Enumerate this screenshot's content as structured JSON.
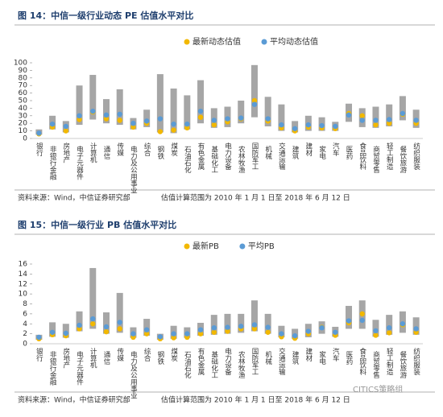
{
  "chart_data": [
    {
      "type": "range",
      "title": "图 14：中信一级行业动态 PE 估值水平对比",
      "source": "资料来源：Wind，中信证券研究部",
      "note": "估值计算范围为 2010 年 1 月 1 日至 2018 年 6 月 12 日",
      "categories": [
        "银行",
        "非银行金融",
        "房地产",
        "电子元器件",
        "计算机",
        "通信",
        "传媒",
        "电力及公用事业",
        "综合",
        "钢铁",
        "煤炭",
        "石油石化",
        "有色金属",
        "基础化工",
        "电力设备",
        "农林牧渔",
        "国防军工",
        "机械",
        "交通运输",
        "建筑",
        "建材",
        "家电",
        "汽车",
        "医药",
        "食品饮料",
        "商贸零售",
        "轻工制造",
        "餐饮旅游",
        "纺织服装"
      ],
      "range_color": "#a6a6a6",
      "range_low": [
        5,
        12,
        8,
        18,
        25,
        20,
        18,
        12,
        15,
        8,
        7,
        12,
        20,
        14,
        15,
        20,
        28,
        16,
        10,
        8,
        10,
        10,
        10,
        22,
        15,
        14,
        16,
        24,
        14
      ],
      "range_high": [
        12,
        30,
        23,
        70,
        84,
        52,
        65,
        27,
        38,
        85,
        66,
        57,
        77,
        40,
        42,
        50,
        97,
        55,
        45,
        23,
        30,
        28,
        22,
        46,
        40,
        42,
        45,
        56,
        38
      ],
      "series": [
        {
          "name": "最新动态估值",
          "color": "#f2b800",
          "values": [
            6,
            15,
            10,
            25,
            35,
            26,
            24,
            15,
            20,
            9,
            11,
            14,
            28,
            18,
            22,
            26,
            50,
            23,
            14,
            10,
            15,
            14,
            13,
            33,
            30,
            18,
            20,
            32,
            20
          ]
        },
        {
          "name": "平均动态估值",
          "color": "#5b9bd5",
          "values": [
            7,
            19,
            16,
            30,
            36,
            31,
            32,
            20,
            23,
            26,
            19,
            19,
            36,
            24,
            26,
            27,
            45,
            26,
            18,
            13,
            18,
            17,
            16,
            31,
            24,
            24,
            25,
            33,
            24
          ]
        }
      ],
      "ylim": [
        0,
        100
      ],
      "yticks": [
        0,
        10,
        20,
        30,
        40,
        50,
        60,
        70,
        80,
        90,
        100
      ]
    },
    {
      "type": "range",
      "title": "图 15：中信一级行业 PB 估值水平对比",
      "source": "资料来源：Wind，中信证券研究部",
      "note": "估值计算范围为 2010 年 1 月 1 日至 2018 年 6 月 12 日",
      "categories": [
        "银行",
        "非银行金融",
        "房地产",
        "电子元器件",
        "计算机",
        "通信",
        "传媒",
        "电力及公用事业",
        "综合",
        "钢铁",
        "煤炭",
        "石油石化",
        "有色金属",
        "基础化工",
        "电力设备",
        "农林牧渔",
        "国防军工",
        "机械",
        "交通运输",
        "建筑",
        "建材",
        "家电",
        "汽车",
        "医药",
        "食品饮料",
        "商贸零售",
        "轻工制造",
        "餐饮旅游",
        "纺织服装"
      ],
      "range_color": "#a6a6a6",
      "range_low": [
        0.8,
        1.4,
        1.2,
        2.5,
        3.0,
        2.0,
        2.2,
        1.2,
        1.6,
        0.8,
        1.0,
        1.2,
        1.6,
        1.8,
        2.0,
        2.2,
        2.5,
        2.0,
        1.3,
        1.0,
        1.3,
        2.0,
        1.4,
        3.0,
        3.0,
        1.4,
        1.8,
        2.2,
        1.8
      ],
      "range_high": [
        1.8,
        4.3,
        4.0,
        6.5,
        15.2,
        6.3,
        10.2,
        3.3,
        5.0,
        2.0,
        3.6,
        3.3,
        4.2,
        5.8,
        6.0,
        6.0,
        8.7,
        6.0,
        3.6,
        3.0,
        4.0,
        4.5,
        3.4,
        7.6,
        8.7,
        4.8,
        5.8,
        6.5,
        5.3
      ],
      "series": [
        {
          "name": "最新PB",
          "color": "#f2b800",
          "values": [
            1.0,
            1.8,
            1.6,
            3.0,
            4.0,
            2.4,
            3.0,
            1.3,
            2.0,
            1.0,
            1.2,
            1.3,
            2.0,
            2.3,
            2.5,
            3.0,
            3.0,
            2.3,
            1.4,
            1.1,
            2.0,
            3.3,
            1.7,
            4.2,
            6.0,
            1.7,
            2.2,
            3.8,
            2.3
          ]
        },
        {
          "name": "平均PB",
          "color": "#5b9bd5",
          "values": [
            1.3,
            2.3,
            2.1,
            3.7,
            5.0,
            3.4,
            4.3,
            2.0,
            2.8,
            1.4,
            2.0,
            2.0,
            2.8,
            3.2,
            3.3,
            3.5,
            3.8,
            3.3,
            2.0,
            1.6,
            2.5,
            3.2,
            2.3,
            4.6,
            4.7,
            2.6,
            3.2,
            4.0,
            3.0
          ]
        }
      ],
      "ylim": [
        0,
        16
      ],
      "yticks": [
        0,
        2,
        4,
        6,
        8,
        10,
        12,
        14,
        16
      ]
    }
  ],
  "watermark": "CITICS策略组"
}
